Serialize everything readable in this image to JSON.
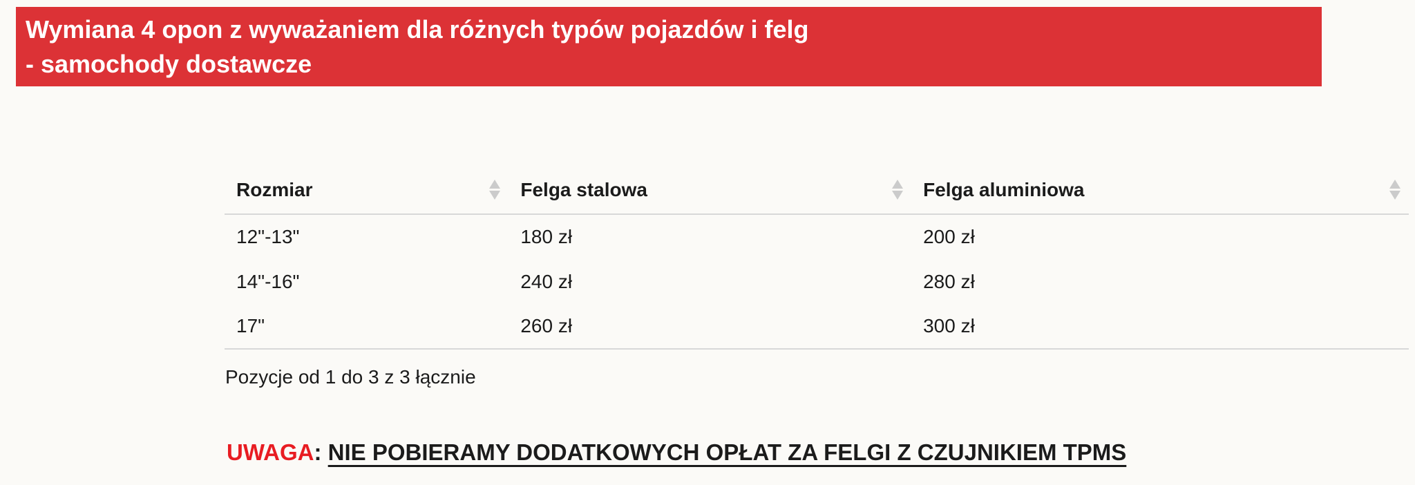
{
  "banner": {
    "title_line1": "Wymiana 4 opon z wyważaniem dla różnych typów pojazdów i felg",
    "title_line2": "- samochody dostawcze",
    "background_color": "#dc3236",
    "text_color": "#ffffff"
  },
  "table": {
    "columns": [
      {
        "label": "Rozmiar",
        "sort_icon": "sort-both-arrows"
      },
      {
        "label": "Felga stalowa",
        "sort_icon": "sort-both-arrows"
      },
      {
        "label": "Felga aluminiowa",
        "sort_icon": "sort-both-arrows"
      }
    ],
    "rows": [
      [
        "12\"-13\"",
        "180 zł",
        "200 zł"
      ],
      [
        "14\"-16\"",
        "240 zł",
        "280 zł"
      ],
      [
        "17\"",
        "260 zł",
        "300 zł"
      ]
    ],
    "summary": "Pozycje od 1 do 3 z 3 łącznie"
  },
  "note": {
    "label": "UWAGA",
    "separator": ": ",
    "text": "NIE POBIERAMY DODATKOWYCH OPŁAT ZA FELGI Z CZUJNIKIEM TPMS",
    "label_color": "#e81c22"
  }
}
